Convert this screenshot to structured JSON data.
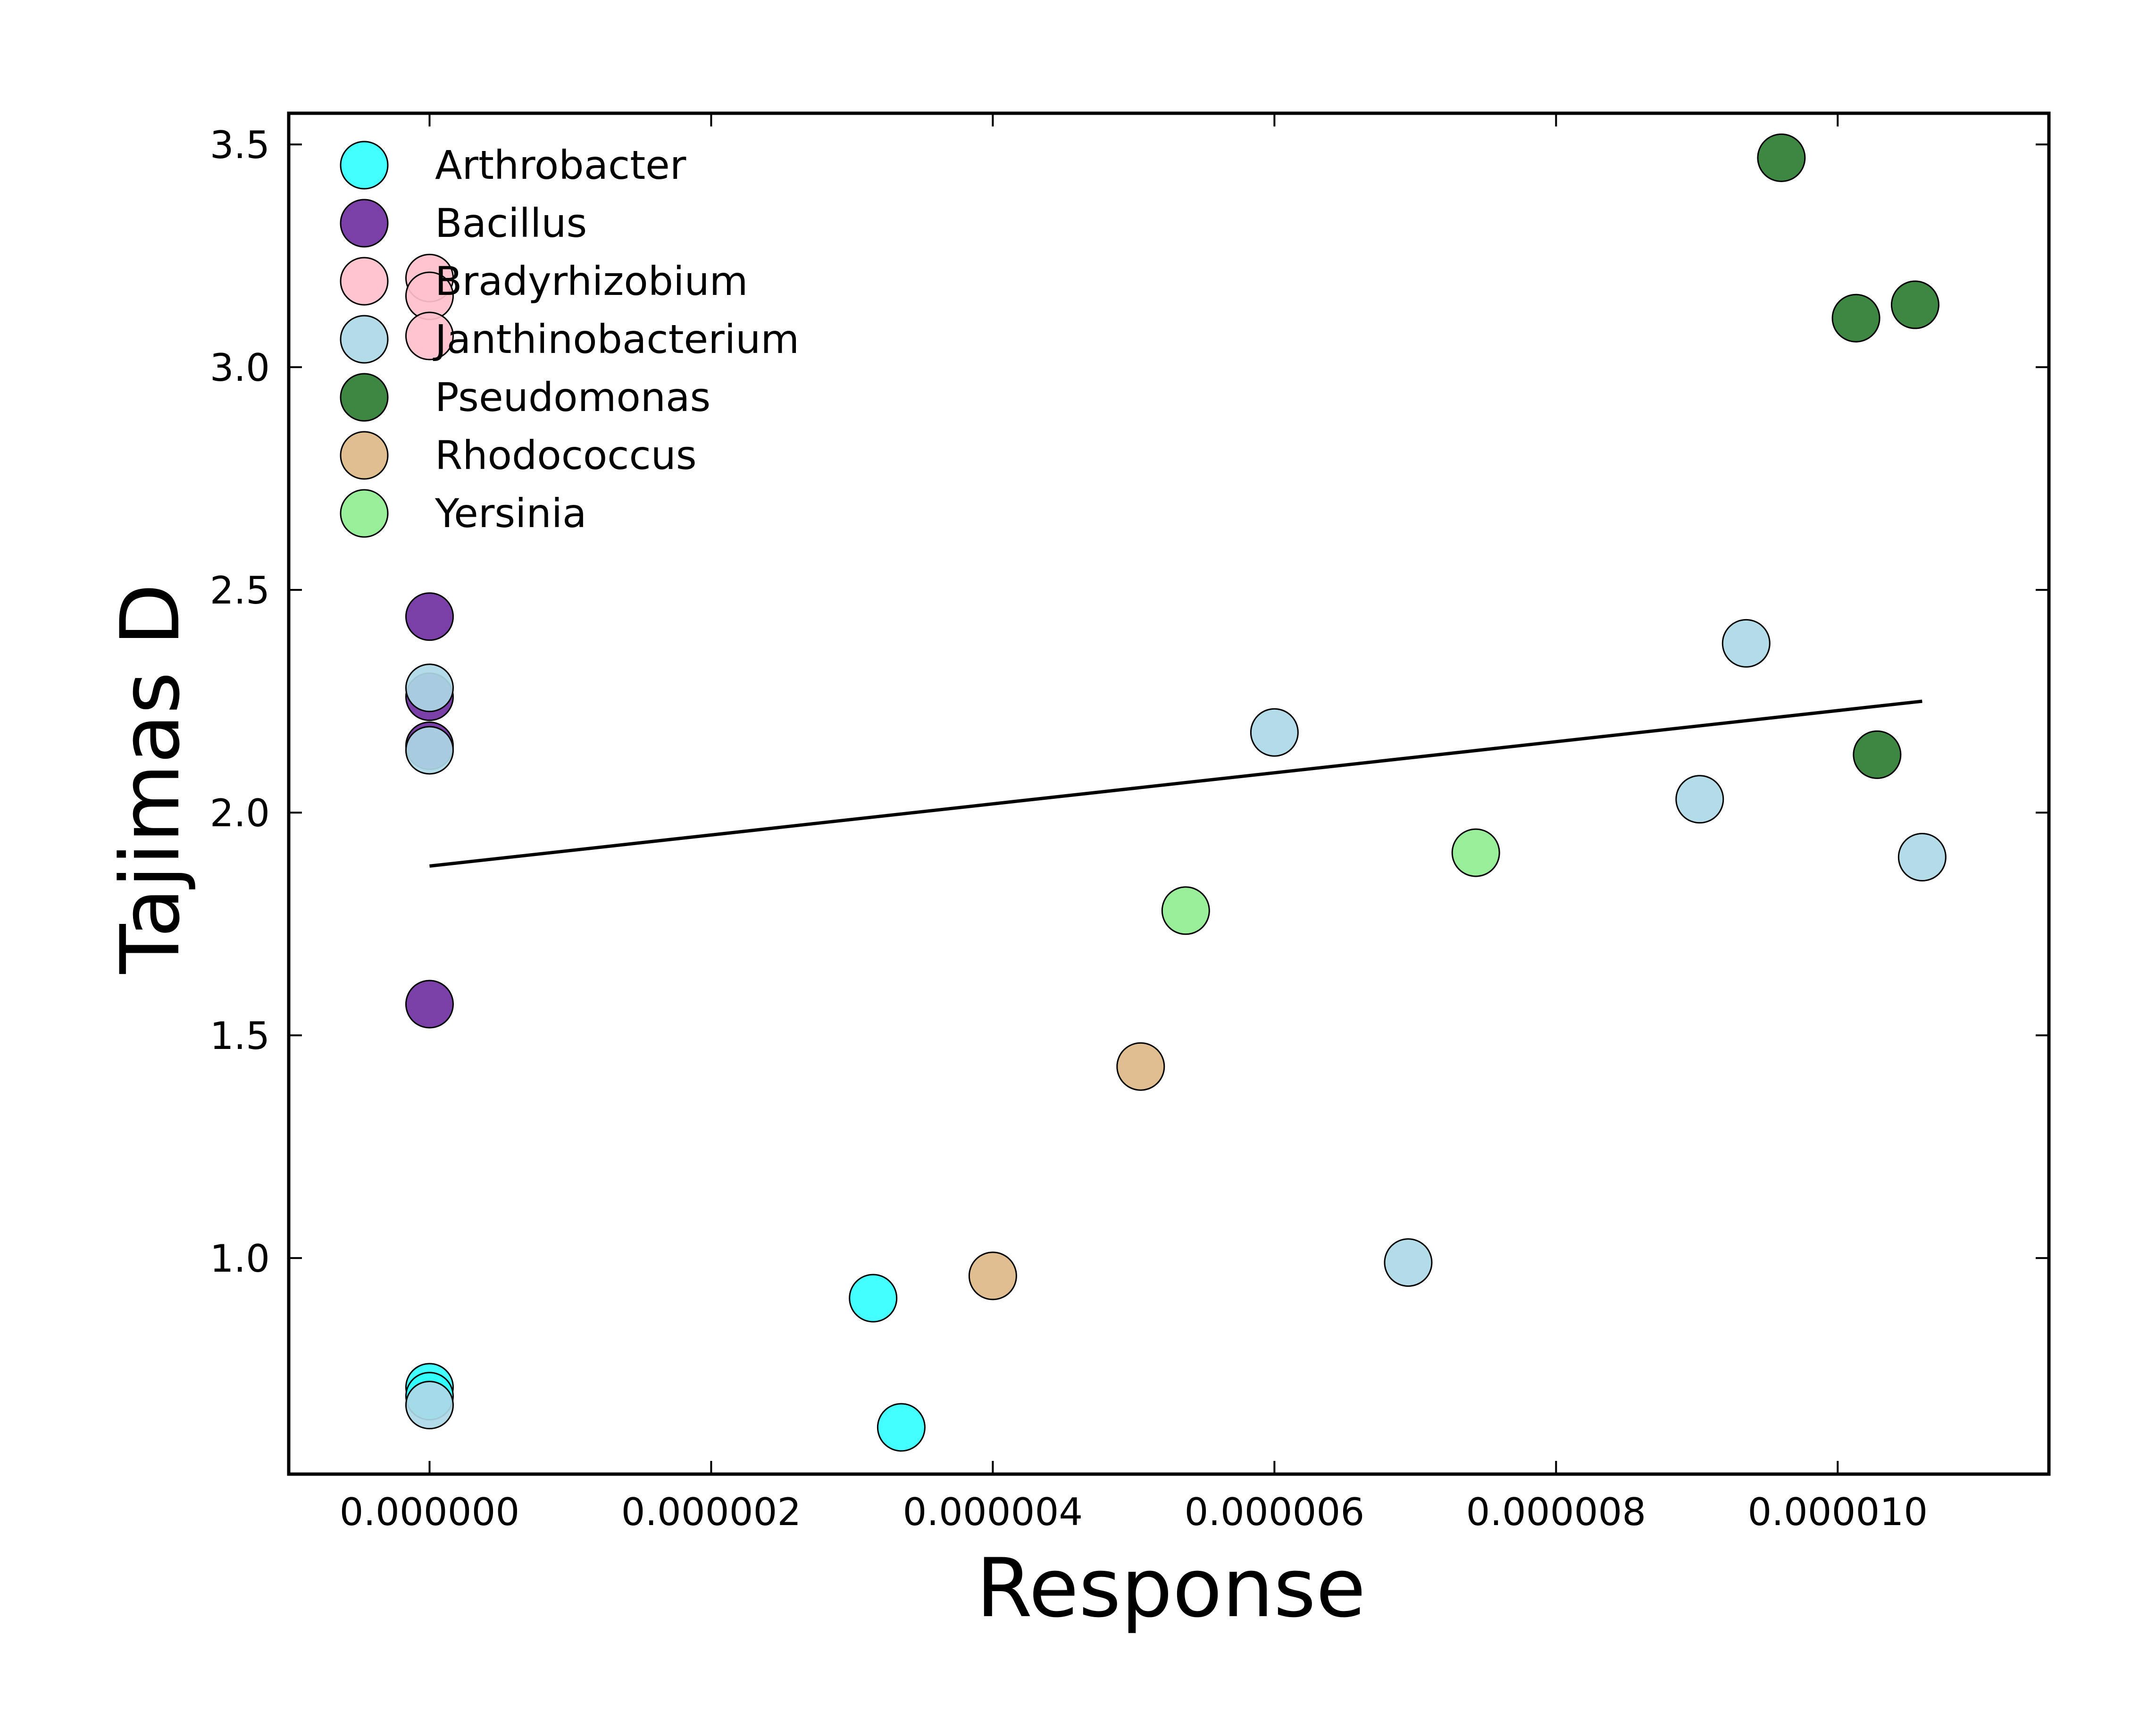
{
  "chart_data": {
    "type": "scatter",
    "title": "",
    "xlabel": "Response",
    "ylabel": "Tajimas D",
    "xlim": [
      -1e-06,
      1.15e-05
    ],
    "ylim": [
      0.515,
      3.57
    ],
    "x_ticks": [
      0,
      2e-06,
      4e-06,
      6e-06,
      8e-06,
      1e-05
    ],
    "x_tick_labels": [
      "0.000000",
      "0.000002",
      "0.000004",
      "0.000006",
      "0.000008",
      "0.000010"
    ],
    "y_ticks": [
      1.0,
      1.5,
      2.0,
      2.5,
      3.0,
      3.5
    ],
    "y_tick_labels": [
      "1.0",
      "1.5",
      "2.0",
      "2.5",
      "3.0",
      "3.5"
    ],
    "grid": false,
    "legend_position": "top-left",
    "series": [
      {
        "name": "Arthrobacter",
        "color": "#33ffff",
        "points": [
          [
            0,
            0.71
          ],
          [
            0,
            0.69
          ],
          [
            3.15e-06,
            0.91
          ],
          [
            3.35e-06,
            0.62
          ]
        ]
      },
      {
        "name": "Bacillus",
        "color": "#7030a0",
        "points": [
          [
            0,
            2.44
          ],
          [
            0,
            2.26
          ],
          [
            0,
            2.15
          ],
          [
            0,
            1.57
          ]
        ]
      },
      {
        "name": "Bradyrhizobium",
        "color": "#ffc0cb",
        "points": [
          [
            0,
            3.2
          ],
          [
            0,
            3.16
          ],
          [
            0,
            3.07
          ]
        ]
      },
      {
        "name": "Janthinobacterium",
        "color": "#add8e6",
        "points": [
          [
            0,
            2.28
          ],
          [
            0,
            2.14
          ],
          [
            0,
            0.67
          ],
          [
            6e-06,
            2.18
          ],
          [
            6.95e-06,
            0.99
          ],
          [
            9.02e-06,
            2.03
          ],
          [
            9.35e-06,
            2.38
          ],
          [
            1.06e-05,
            1.9
          ]
        ]
      },
      {
        "name": "Pseudomonas",
        "color": "#2e7d32",
        "points": [
          [
            9.6e-06,
            3.47
          ],
          [
            1.013e-05,
            3.11
          ],
          [
            1.055e-05,
            3.14
          ],
          [
            1.028e-05,
            2.13
          ]
        ]
      },
      {
        "name": "Rhodococcus",
        "color": "#deb887",
        "points": [
          [
            4e-06,
            0.96
          ],
          [
            5.05e-06,
            1.43
          ]
        ]
      },
      {
        "name": "Yersinia",
        "color": "#90ee90",
        "points": [
          [
            5.37e-06,
            1.78
          ],
          [
            7.43e-06,
            1.91
          ]
        ]
      }
    ],
    "fit_line": {
      "color": "#000000",
      "points": [
        [
          0,
          1.88
        ],
        [
          1.06e-05,
          2.25
        ]
      ]
    }
  }
}
